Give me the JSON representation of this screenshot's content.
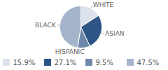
{
  "chart_data": {
    "type": "pie",
    "categories": [
      "WHITE",
      "ASIAN",
      "HISPANIC",
      "BLACK"
    ],
    "values": [
      15.9,
      27.1,
      9.5,
      47.5
    ],
    "value_labels": [
      "15.9%",
      "27.1%",
      "9.5%",
      "47.5%"
    ],
    "colors": [
      "#dce3ec",
      "#2e5585",
      "#6f88aa",
      "#a4b4cb"
    ],
    "legend": "bottom"
  }
}
